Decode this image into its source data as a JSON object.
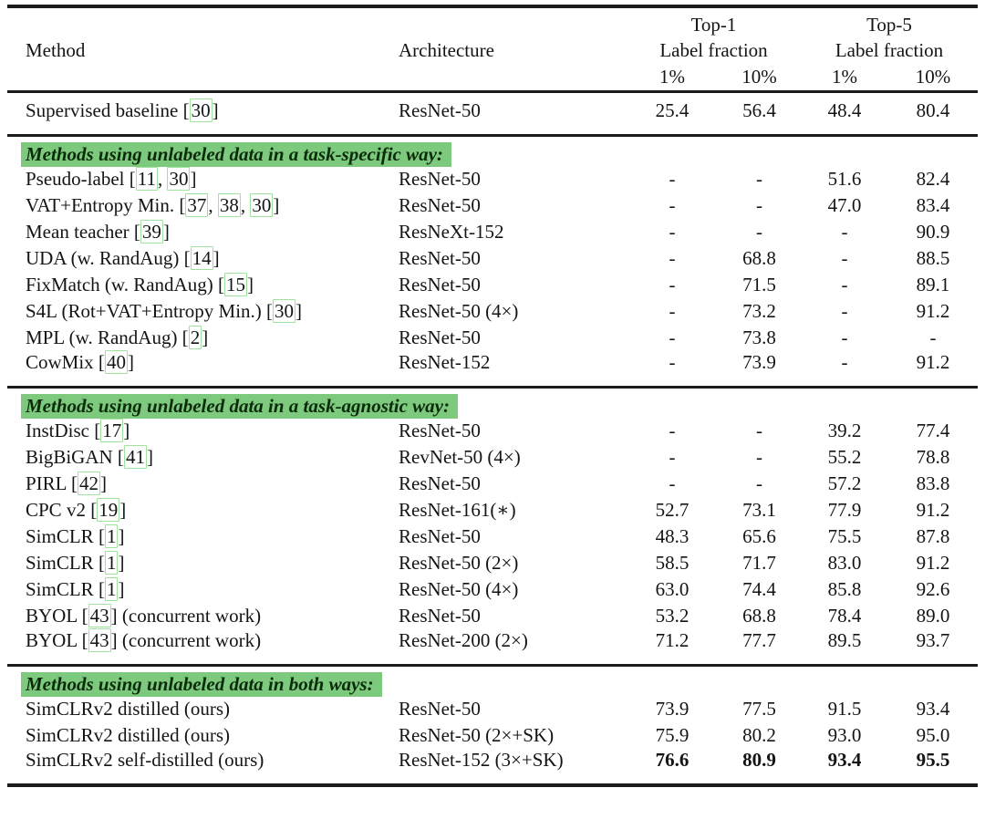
{
  "colors": {
    "section_highlight": "#7dc97d",
    "section_text": "#0a2b0a",
    "citation_box_border": "#9fe39f",
    "text": "#141414",
    "rule": "#1c1c1c",
    "background": "#ffffff"
  },
  "table": {
    "header": {
      "method": "Method",
      "architecture": "Architecture",
      "groups": [
        {
          "title": "Top-1",
          "subtitle": "Label fraction",
          "cols": [
            "1%",
            "10%"
          ]
        },
        {
          "title": "Top-5",
          "subtitle": "Label fraction",
          "cols": [
            "1%",
            "10%"
          ]
        }
      ]
    },
    "sections": [
      {
        "title": "",
        "rows": [
          {
            "method": "Supervised baseline [30]",
            "architecture": "ResNet-50",
            "values": [
              "25.4",
              "56.4",
              "48.4",
              "80.4"
            ],
            "bold_values": false
          }
        ]
      },
      {
        "title": "Methods using unlabeled data in a task-specific way:",
        "rows": [
          {
            "method": "Pseudo-label [11, 30]",
            "architecture": "ResNet-50",
            "values": [
              "-",
              "-",
              "51.6",
              "82.4"
            ],
            "bold_values": false
          },
          {
            "method": "VAT+Entropy Min. [37, 38, 30]",
            "architecture": "ResNet-50",
            "values": [
              "-",
              "-",
              "47.0",
              "83.4"
            ],
            "bold_values": false
          },
          {
            "method": "Mean teacher [39]",
            "architecture": "ResNeXt-152",
            "values": [
              "-",
              "-",
              "-",
              "90.9"
            ],
            "bold_values": false
          },
          {
            "method": "UDA (w. RandAug) [14]",
            "architecture": "ResNet-50",
            "values": [
              "-",
              "68.8",
              "-",
              "88.5"
            ],
            "bold_values": false
          },
          {
            "method": "FixMatch (w. RandAug) [15]",
            "architecture": "ResNet-50",
            "values": [
              "-",
              "71.5",
              "-",
              "89.1"
            ],
            "bold_values": false
          },
          {
            "method": "S4L (Rot+VAT+Entropy Min.) [30]",
            "architecture": "ResNet-50 (4×)",
            "values": [
              "-",
              "73.2",
              "-",
              "91.2"
            ],
            "bold_values": false
          },
          {
            "method": "MPL (w. RandAug) [2]",
            "architecture": "ResNet-50",
            "values": [
              "-",
              "73.8",
              "-",
              "-"
            ],
            "bold_values": false
          },
          {
            "method": "CowMix [40]",
            "architecture": "ResNet-152",
            "values": [
              "-",
              "73.9",
              "-",
              "91.2"
            ],
            "bold_values": false
          }
        ]
      },
      {
        "title": "Methods using unlabeled data in a task-agnostic way:",
        "rows": [
          {
            "method": "InstDisc [17]",
            "architecture": "ResNet-50",
            "values": [
              "-",
              "-",
              "39.2",
              "77.4"
            ],
            "bold_values": false
          },
          {
            "method": "BigBiGAN [41]",
            "architecture": "RevNet-50 (4×)",
            "values": [
              "-",
              "-",
              "55.2",
              "78.8"
            ],
            "bold_values": false
          },
          {
            "method": "PIRL [42]",
            "architecture": "ResNet-50",
            "values": [
              "-",
              "-",
              "57.2",
              "83.8"
            ],
            "bold_values": false
          },
          {
            "method": "CPC v2 [19]",
            "architecture": "ResNet-161(∗)",
            "values": [
              "52.7",
              "73.1",
              "77.9",
              "91.2"
            ],
            "bold_values": false
          },
          {
            "method": "SimCLR [1]",
            "architecture": "ResNet-50",
            "values": [
              "48.3",
              "65.6",
              "75.5",
              "87.8"
            ],
            "bold_values": false
          },
          {
            "method": "SimCLR [1]",
            "architecture": "ResNet-50 (2×)",
            "values": [
              "58.5",
              "71.7",
              "83.0",
              "91.2"
            ],
            "bold_values": false
          },
          {
            "method": "SimCLR [1]",
            "architecture": "ResNet-50 (4×)",
            "values": [
              "63.0",
              "74.4",
              "85.8",
              "92.6"
            ],
            "bold_values": false
          },
          {
            "method": "BYOL [43] (concurrent work)",
            "architecture": "ResNet-50",
            "values": [
              "53.2",
              "68.8",
              "78.4",
              "89.0"
            ],
            "bold_values": false
          },
          {
            "method": "BYOL [43] (concurrent work)",
            "architecture": "ResNet-200 (2×)",
            "values": [
              "71.2",
              "77.7",
              "89.5",
              "93.7"
            ],
            "bold_values": false
          }
        ]
      },
      {
        "title": "Methods using unlabeled data in both ways:",
        "rows": [
          {
            "method": "SimCLRv2 distilled (ours)",
            "architecture": "ResNet-50",
            "values": [
              "73.9",
              "77.5",
              "91.5",
              "93.4"
            ],
            "bold_values": false
          },
          {
            "method": "SimCLRv2 distilled (ours)",
            "architecture": "ResNet-50 (2×+SK)",
            "values": [
              "75.9",
              "80.2",
              "93.0",
              "95.0"
            ],
            "bold_values": false
          },
          {
            "method": "SimCLRv2 self-distilled (ours)",
            "architecture": "ResNet-152 (3×+SK)",
            "values": [
              "76.6",
              "80.9",
              "93.4",
              "95.5"
            ],
            "bold_values": true
          }
        ]
      }
    ]
  }
}
